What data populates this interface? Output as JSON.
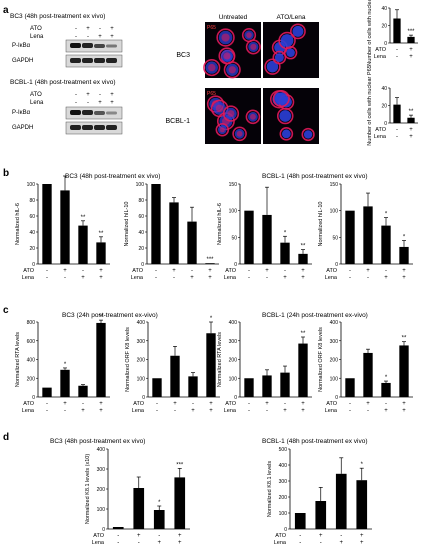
{
  "figure": {
    "panel_labels": [
      "a",
      "b",
      "c",
      "d"
    ],
    "sign_plus": "+",
    "sign_minus": "-",
    "panel_a": {
      "blots": [
        {
          "title": "BC3 (48h post-treatment ex vivo)",
          "rows": [
            {
              "label": "ATO",
              "signs": [
                "-",
                "+",
                "-",
                "+"
              ]
            },
            {
              "label": "Lena",
              "signs": [
                "-",
                "-",
                "+",
                "+"
              ]
            }
          ],
          "bands": [
            "P-IκBα",
            "GAPDH"
          ]
        },
        {
          "title": "BCBL-1 (48h post-treatment ex vivo)",
          "rows": [
            {
              "label": "ATO",
              "signs": [
                "-",
                "+",
                "-",
                "+"
              ]
            },
            {
              "label": "Lena",
              "signs": [
                "-",
                "-",
                "+",
                "+"
              ]
            }
          ],
          "bands": [
            "P-IκBα",
            "GAPDH"
          ]
        }
      ],
      "micro_headers": [
        "Untreated",
        "ATO/Lena"
      ],
      "micro_rows": [
        "BC3",
        "BCBL-1"
      ],
      "micro_tag": "P65"
    }
  },
  "colors": {
    "bar": "#000000",
    "nucleus": "#2b3fd8",
    "stain": "#e0185a",
    "micro_bg": "#050208"
  },
  "chart_data": [
    {
      "panel": "a",
      "type": "bar",
      "title": "",
      "ylabel": "Number of cells with nuclear P65",
      "ylim": [
        0,
        40
      ],
      "yticks": [
        0,
        20,
        40
      ],
      "rows": [
        {
          "label": "ATO",
          "signs": [
            "-",
            "+"
          ]
        },
        {
          "label": "Lena",
          "signs": [
            "-",
            "+"
          ]
        }
      ],
      "values": [
        28,
        7
      ],
      "errors": [
        10,
        2
      ],
      "sig": [
        "",
        "***"
      ]
    },
    {
      "panel": "a",
      "type": "bar",
      "title": "",
      "ylabel": "Number of cells with nuclear P65",
      "ylim": [
        0,
        40
      ],
      "yticks": [
        0,
        20,
        40
      ],
      "rows": [
        {
          "label": "ATO",
          "signs": [
            "-",
            "+"
          ]
        },
        {
          "label": "Lena",
          "signs": [
            "-",
            "+"
          ]
        }
      ],
      "values": [
        21,
        6
      ],
      "errors": [
        8,
        3
      ],
      "sig": [
        "",
        "**"
      ]
    },
    {
      "panel": "b",
      "type": "bar",
      "title": "BC3 (48h post-treatment ex vivo)",
      "ylabel": "Normalized hIL-6",
      "ylim": [
        0,
        100
      ],
      "yticks": [
        0,
        20,
        40,
        60,
        80,
        100
      ],
      "rows": [
        {
          "label": "ATO",
          "signs": [
            "-",
            "+",
            "-",
            "+"
          ]
        },
        {
          "label": "Lena",
          "signs": [
            "-",
            "-",
            "+",
            "+"
          ]
        }
      ],
      "values": [
        100,
        92,
        48,
        27
      ],
      "errors": [
        0,
        18,
        6,
        7
      ],
      "sig": [
        "",
        "",
        "**",
        "**"
      ]
    },
    {
      "panel": "b",
      "type": "bar",
      "title": "",
      "ylabel": "Normalized hIL-10",
      "ylim": [
        0,
        100
      ],
      "yticks": [
        0,
        20,
        40,
        60,
        80,
        100
      ],
      "rows": [
        {
          "label": "ATO",
          "signs": [
            "-",
            "+",
            "-",
            "+"
          ]
        },
        {
          "label": "Lena",
          "signs": [
            "-",
            "-",
            "+",
            "+"
          ]
        }
      ],
      "values": [
        100,
        77,
        53,
        1
      ],
      "errors": [
        0,
        6,
        18,
        0
      ],
      "sig": [
        "",
        "",
        "",
        "***"
      ]
    },
    {
      "panel": "b",
      "type": "bar",
      "title": "BCBL-1 (48h post-treatment ex vivo)",
      "ylabel": "Normalized hIL-6",
      "ylim": [
        0,
        150
      ],
      "yticks": [
        0,
        50,
        100,
        150
      ],
      "rows": [
        {
          "label": "ATO",
          "signs": [
            "-",
            "+",
            "-",
            "+"
          ]
        },
        {
          "label": "Lena",
          "signs": [
            "-",
            "-",
            "+",
            "+"
          ]
        }
      ],
      "values": [
        100,
        92,
        40,
        19
      ],
      "errors": [
        0,
        52,
        12,
        8
      ],
      "sig": [
        "",
        "",
        "*",
        "**"
      ]
    },
    {
      "panel": "b",
      "type": "bar",
      "title": "",
      "ylabel": "Normalized hIL-10",
      "ylim": [
        0,
        150
      ],
      "yticks": [
        0,
        50,
        100,
        150
      ],
      "rows": [
        {
          "label": "ATO",
          "signs": [
            "-",
            "+",
            "-",
            "+"
          ]
        },
        {
          "label": "Lena",
          "signs": [
            "-",
            "-",
            "+",
            "+"
          ]
        }
      ],
      "values": [
        100,
        108,
        72,
        32
      ],
      "errors": [
        0,
        25,
        15,
        12
      ],
      "sig": [
        "",
        "",
        "*",
        "*"
      ]
    },
    {
      "panel": "c",
      "type": "bar",
      "title": "BC3 (24h post-treatment ex-vivo)",
      "ylabel": "Normalized RTA levels",
      "ylim": [
        0,
        800
      ],
      "yticks": [
        0,
        200,
        400,
        600,
        800
      ],
      "rows": [
        {
          "label": "ATO",
          "signs": [
            "-",
            "+",
            "-",
            "+"
          ]
        },
        {
          "label": "Lena",
          "signs": [
            "-",
            "-",
            "+",
            "+"
          ]
        }
      ],
      "values": [
        100,
        290,
        120,
        790
      ],
      "errors": [
        0,
        20,
        12,
        30
      ],
      "sig": [
        "",
        "*",
        "",
        "**"
      ]
    },
    {
      "panel": "c",
      "type": "bar",
      "title": "",
      "ylabel": "Normalized ORF K8 levels",
      "ylim": [
        0,
        400
      ],
      "yticks": [
        0,
        100,
        200,
        300,
        400
      ],
      "rows": [
        {
          "label": "ATO",
          "signs": [
            "-",
            "+",
            "-",
            "+"
          ]
        },
        {
          "label": "Lena",
          "signs": [
            "-",
            "-",
            "+",
            "+"
          ]
        }
      ],
      "values": [
        100,
        220,
        110,
        340
      ],
      "errors": [
        0,
        50,
        20,
        60
      ],
      "sig": [
        "",
        "",
        "",
        "*"
      ]
    },
    {
      "panel": "c",
      "type": "bar",
      "title": "BCBL-1 (24h post-treatment ex-vivo)",
      "ylabel": "Normalized RTA levels",
      "ylim": [
        0,
        400
      ],
      "yticks": [
        0,
        100,
        200,
        300,
        400
      ],
      "rows": [
        {
          "label": "ATO",
          "signs": [
            "-",
            "+",
            "-",
            "+"
          ]
        },
        {
          "label": "Lena",
          "signs": [
            "-",
            "-",
            "+",
            "+"
          ]
        }
      ],
      "values": [
        100,
        115,
        130,
        285
      ],
      "errors": [
        0,
        30,
        35,
        35
      ],
      "sig": [
        "",
        "",
        "",
        "**"
      ]
    },
    {
      "panel": "c",
      "type": "bar",
      "title": "",
      "ylabel": "Normalized ORF K8 levels",
      "ylim": [
        0,
        400
      ],
      "yticks": [
        0,
        100,
        200,
        300,
        400
      ],
      "rows": [
        {
          "label": "ATO",
          "signs": [
            "-",
            "+",
            "-",
            "+"
          ]
        },
        {
          "label": "Lena",
          "signs": [
            "-",
            "-",
            "+",
            "+"
          ]
        }
      ],
      "values": [
        100,
        235,
        75,
        275
      ],
      "errors": [
        0,
        20,
        10,
        20
      ],
      "sig": [
        "",
        "",
        "*",
        "**"
      ]
    },
    {
      "panel": "d",
      "type": "bar",
      "title": "BC3 (48h post-treatment ex vivo)",
      "ylabel": "Normalized K8.1 levels (x10)",
      "ylim": [
        0,
        400
      ],
      "yticks": [
        0,
        100,
        200,
        300,
        400
      ],
      "rows": [
        {
          "label": "ATO",
          "signs": [
            "-",
            "+",
            "-",
            "+"
          ]
        },
        {
          "label": "Lena",
          "signs": [
            "-",
            "-",
            "+",
            "+"
          ]
        }
      ],
      "values": [
        10,
        205,
        95,
        258
      ],
      "errors": [
        0,
        55,
        20,
        45
      ],
      "sig": [
        "",
        "",
        "*",
        "***"
      ]
    },
    {
      "panel": "d",
      "type": "bar",
      "title": "BCBL-1 (48h post-treatment ex vivo)",
      "ylabel": "Normalized K8.1 levels",
      "ylim": [
        0,
        500
      ],
      "yticks": [
        0,
        100,
        200,
        300,
        400,
        500
      ],
      "rows": [
        {
          "label": "ATO",
          "signs": [
            "-",
            "+",
            "-",
            "+"
          ]
        },
        {
          "label": "Lena",
          "signs": [
            "-",
            "-",
            "+",
            "+"
          ]
        }
      ],
      "values": [
        100,
        175,
        345,
        305
      ],
      "errors": [
        0,
        85,
        100,
        75
      ],
      "sig": [
        "",
        "",
        "",
        "*"
      ]
    }
  ]
}
